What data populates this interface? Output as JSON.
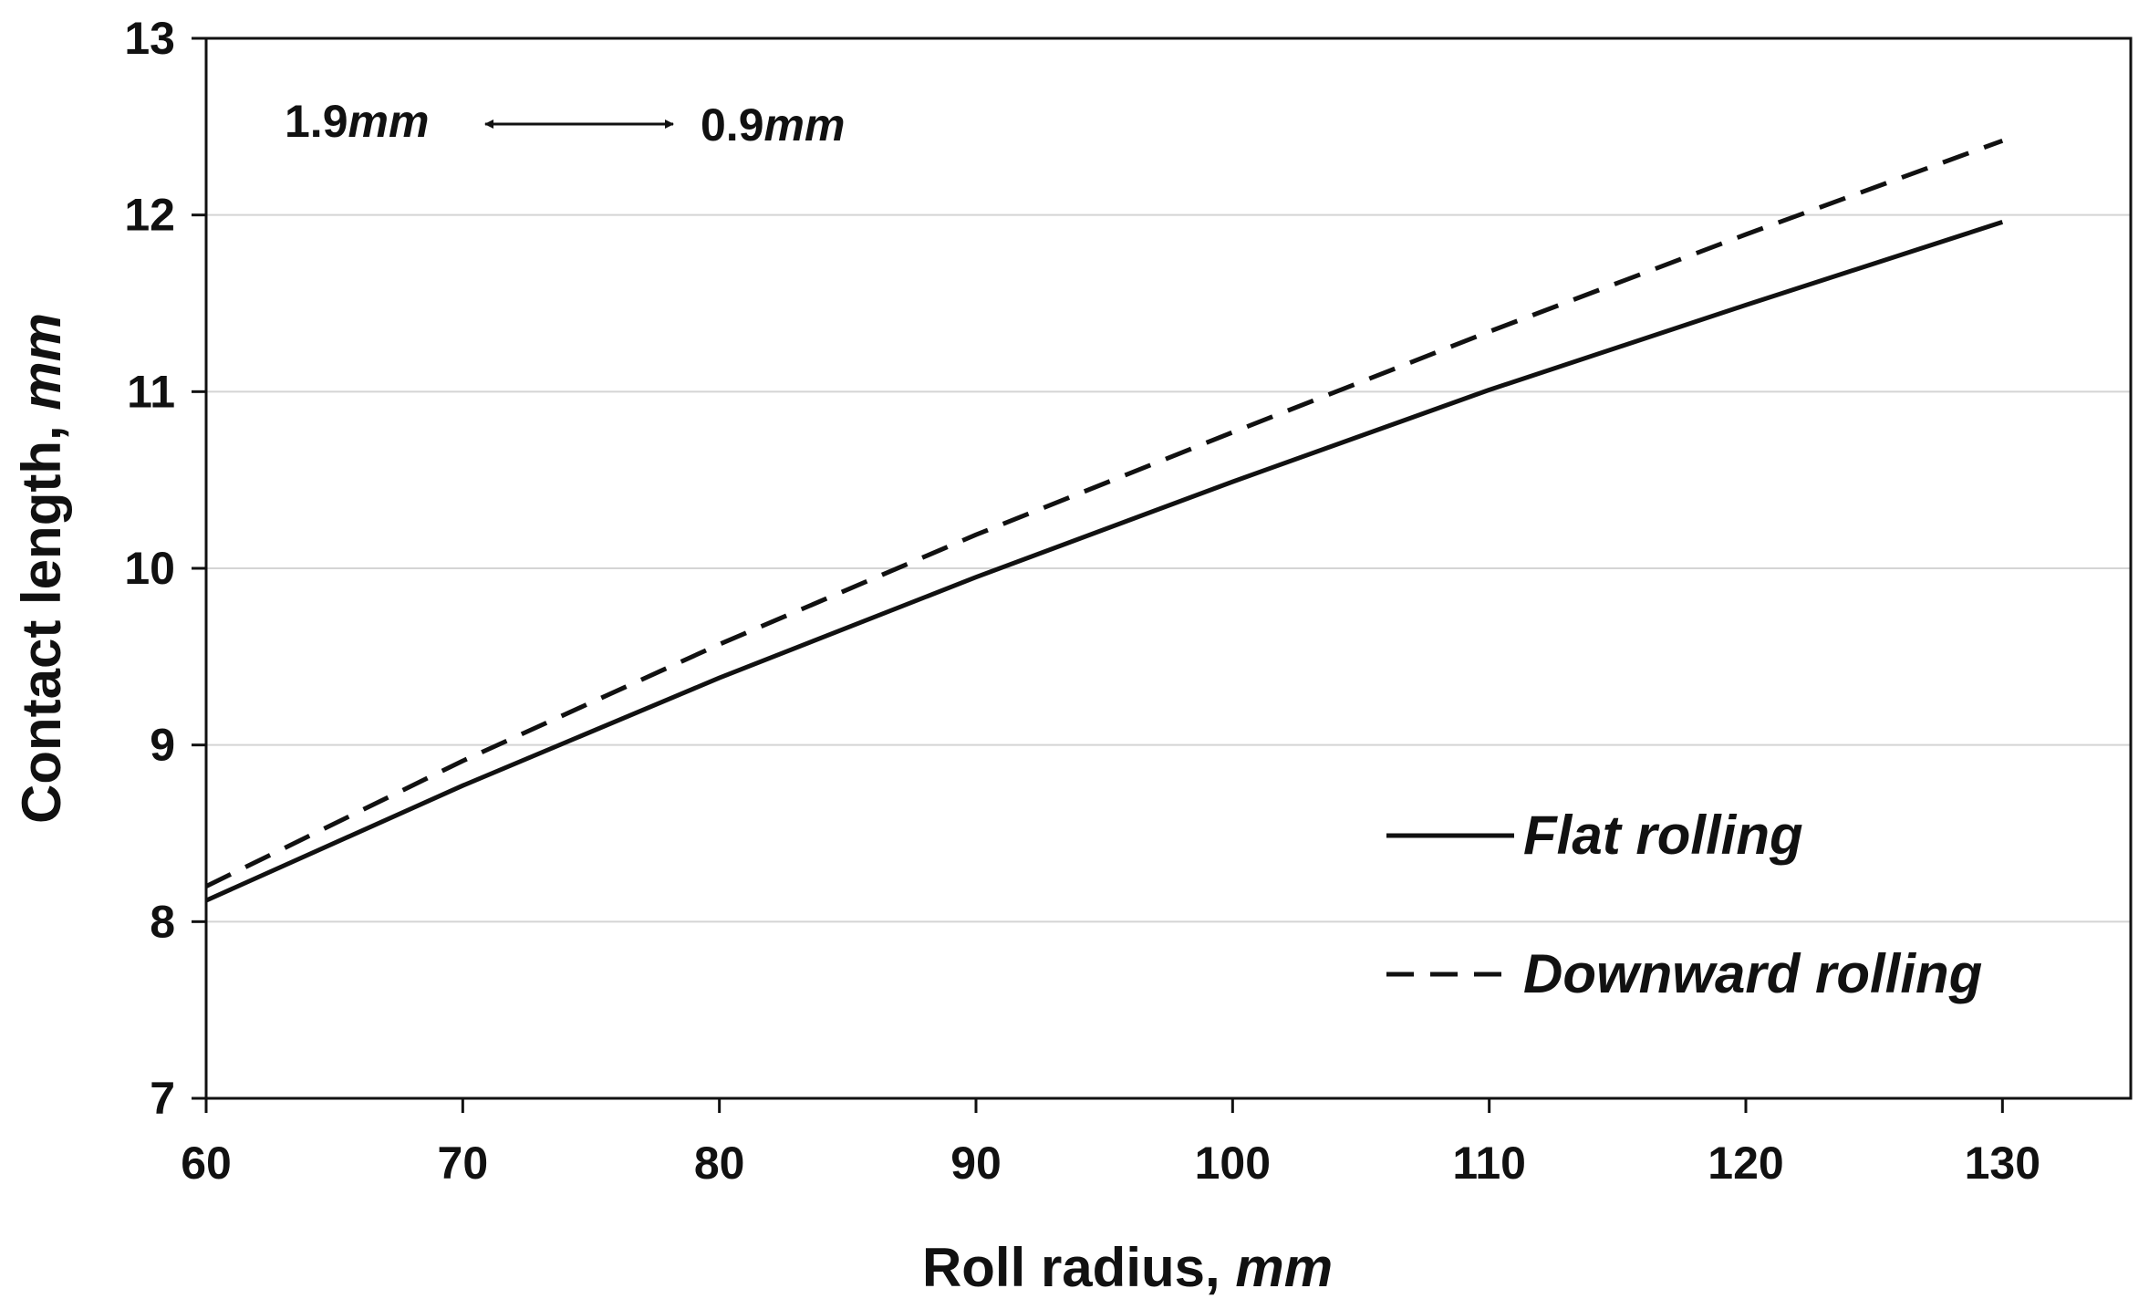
{
  "chart_data": {
    "type": "line",
    "title": "",
    "xlabel_main": "Roll radius, ",
    "xlabel_unit": "mm",
    "ylabel_main": "Contact length, ",
    "ylabel_unit": "mm",
    "xlim": [
      60,
      135
    ],
    "ylim": [
      7,
      13
    ],
    "xticks": [
      60,
      70,
      80,
      90,
      100,
      110,
      120,
      130
    ],
    "yticks": [
      7,
      8,
      9,
      10,
      11,
      12,
      13
    ],
    "grid": "horizontal",
    "legend_position": "lower-right",
    "series": [
      {
        "name": "Flat rolling",
        "style": "solid",
        "x": [
          60,
          70,
          80,
          90,
          100,
          110,
          120,
          130
        ],
        "y": [
          8.12,
          8.77,
          9.38,
          9.95,
          10.49,
          11.01,
          11.49,
          11.96
        ]
      },
      {
        "name": "Downward rolling",
        "style": "dashed",
        "x": [
          60,
          70,
          80,
          90,
          100,
          110,
          120,
          130
        ],
        "y": [
          8.2,
          8.91,
          9.57,
          10.19,
          10.77,
          11.34,
          11.89,
          12.42
        ]
      }
    ],
    "annotation": {
      "left_value": "1.9",
      "left_unit": "mm",
      "right_value": "0.9",
      "right_unit": "mm"
    }
  }
}
